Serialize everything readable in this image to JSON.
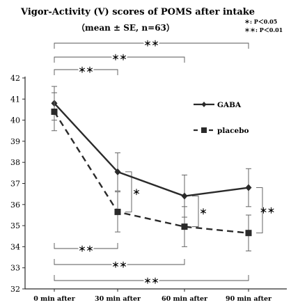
{
  "chart_data": {
    "type": "line",
    "title": "Vigor-Activity  (V) scores of POMS after intake",
    "subtitle": "（mean ± SE,  n=63）",
    "significance_notes": [
      "＊: P＜0.05",
      "＊＊: P＜0.01"
    ],
    "categories": [
      "0 min after",
      "30 min after",
      "60 min after",
      "90 min after"
    ],
    "ylim": [
      32,
      42
    ],
    "yticks": [
      32,
      33,
      34,
      35,
      36,
      37,
      38,
      39,
      40,
      41,
      42
    ],
    "legend_position": "right",
    "series": [
      {
        "name": "GABA",
        "values": [
          40.8,
          37.55,
          36.4,
          36.8
        ],
        "errors": [
          0.8,
          0.9,
          1.0,
          0.9
        ],
        "color": "#2a2a2a",
        "line_style": "solid",
        "marker": "diamond"
      },
      {
        "name": "placebo",
        "values": [
          40.4,
          35.65,
          34.95,
          34.65
        ],
        "errors": [
          0.9,
          0.95,
          0.95,
          0.85
        ],
        "color": "#2a2a2a",
        "line_style": "dashed",
        "marker": "square"
      }
    ],
    "comparisons_top": [
      {
        "from": 0,
        "to": 1,
        "label": "＊＊"
      },
      {
        "from": 0,
        "to": 2,
        "label": "＊＊"
      },
      {
        "from": 0,
        "to": 3,
        "label": "＊＊"
      }
    ],
    "comparisons_bottom": [
      {
        "from": 0,
        "to": 1,
        "label": "＊＊"
      },
      {
        "from": 0,
        "to": 2,
        "label": "＊＊"
      },
      {
        "from": 0,
        "to": 3,
        "label": "＊＊"
      }
    ],
    "comparisons_between_groups": [
      {
        "at": 1,
        "label": "＊"
      },
      {
        "at": 2,
        "label": "＊"
      },
      {
        "at": 3,
        "label": "＊＊"
      }
    ]
  }
}
